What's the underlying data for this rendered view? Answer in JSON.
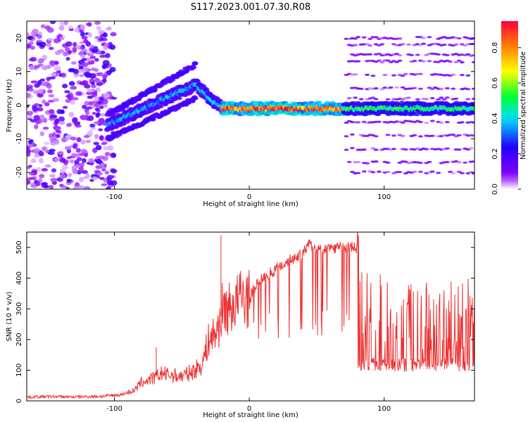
{
  "title": "S117.2023.001.07.30.R08",
  "chart_data": [
    {
      "type": "heatmap",
      "xlabel": "Height of straight line (km)",
      "ylabel": "Frequency (Hz)",
      "xlim": [
        -165,
        167
      ],
      "ylim": [
        -25,
        25
      ],
      "x_ticks": [
        -100,
        0,
        100
      ],
      "y_ticks": [
        -20,
        -10,
        0,
        10,
        20
      ],
      "colorbar": {
        "label": "Normalized spectral amplitude",
        "range": [
          0.0,
          0.95
        ],
        "ticks": [
          0.0,
          0.2,
          0.4,
          0.6,
          0.8
        ],
        "tick_labels": [
          "0.0",
          "0.2",
          "0.4",
          "0.6",
          "0.8"
        ],
        "colormap": [
          "#ffffff",
          "#8a00ff",
          "#2000ff",
          "#00e0ff",
          "#00ff30",
          "#ffff00",
          "#ff8000",
          "#ff0040"
        ]
      },
      "features": [
        {
          "region": "noise",
          "x_range": [
            -165,
            -100
          ],
          "freq_range": [
            -25,
            25
          ],
          "amplitude": 0.15
        },
        {
          "region": "rising_signal",
          "x": [
            -105,
            -40
          ],
          "freq": [
            -6,
            6
          ],
          "amplitude": 0.4
        },
        {
          "region": "upper_branch",
          "x": [
            -105,
            -40
          ],
          "freq": [
            -3,
            12
          ],
          "amplitude": 0.2
        },
        {
          "region": "lower_branch",
          "x": [
            -105,
            -40
          ],
          "freq": [
            -10,
            2
          ],
          "amplitude": 0.2
        },
        {
          "region": "falling_signal",
          "x": [
            -40,
            -20
          ],
          "freq": [
            6,
            -1
          ],
          "amplitude": 0.45
        },
        {
          "region": "strong_carrier",
          "x": [
            -20,
            70
          ],
          "freq": [
            -1,
            -1
          ],
          "amplitude": 0.95
        },
        {
          "region": "carrier_tail",
          "x": [
            70,
            167
          ],
          "freq": [
            -1,
            -1
          ],
          "amplitude": 0.55
        },
        {
          "region": "harmonic_bands",
          "x_range": [
            72,
            167
          ],
          "freq_lines": [
            -20,
            -17,
            -13,
            -9,
            -5,
            2,
            5,
            9,
            13,
            15,
            18,
            20
          ],
          "amplitude": 0.15
        }
      ]
    },
    {
      "type": "line",
      "xlabel": "Height of straight line (km)",
      "ylabel": "SNR (10 * v/v)",
      "xlim": [
        -165,
        167
      ],
      "ylim": [
        0,
        550
      ],
      "x_ticks": [
        -100,
        0,
        100
      ],
      "y_ticks": [
        0,
        100,
        200,
        300,
        400,
        500
      ],
      "color": "#ee3030",
      "series": [
        {
          "x": [
            -165,
            -150,
            -130,
            -110,
            -95,
            -85,
            -80,
            -70,
            -65,
            -60,
            -50,
            -42,
            -35,
            -30,
            -25,
            -22,
            -20,
            -15,
            -10,
            -5,
            0,
            5,
            10,
            20,
            30,
            40,
            45,
            50,
            60,
            70,
            80,
            82,
            90,
            100,
            105,
            110,
            120,
            130,
            140,
            150,
            160,
            167
          ],
          "values": [
            12,
            14,
            13,
            15,
            20,
            35,
            60,
            75,
            90,
            85,
            80,
            95,
            120,
            200,
            220,
            250,
            300,
            300,
            320,
            340,
            330,
            380,
            400,
            430,
            460,
            480,
            510,
            490,
            500,
            500,
            500,
            280,
            260,
            250,
            250,
            260,
            240,
            230,
            240,
            230,
            240,
            250
          ]
        }
      ],
      "spikes": [
        {
          "x": -21,
          "value": 540
        },
        {
          "x": -69,
          "value": 175
        },
        {
          "x": 44,
          "value": 525
        }
      ],
      "dropout_floor": [
        {
          "x_range": [
            0,
            80
          ],
          "values": [
            200,
            300
          ]
        },
        {
          "x_range": [
            80,
            167
          ],
          "values": [
            95,
            140
          ]
        }
      ]
    }
  ]
}
